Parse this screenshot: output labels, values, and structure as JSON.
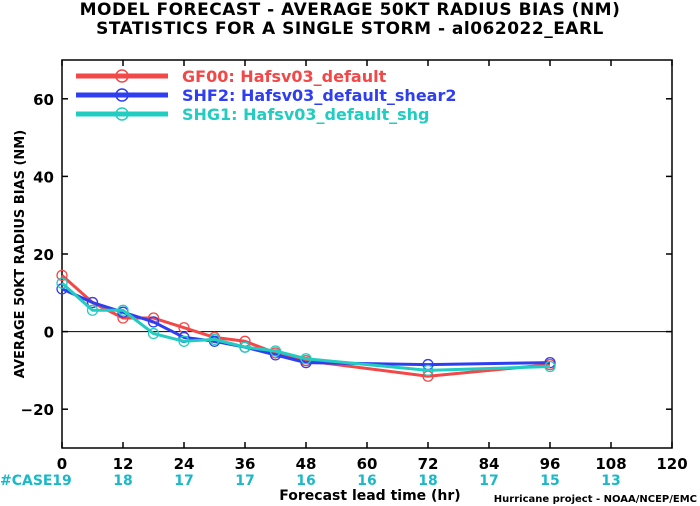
{
  "title": "MODEL FORECAST - AVERAGE 50KT RADIUS BIAS (NM)",
  "subtitle": "STATISTICS FOR A SINGLE STORM - al062022_EARL",
  "credit": "Hurricane project - NOAA/NCEP/EMC",
  "case_label": "#CASE",
  "chart_data": {
    "type": "line",
    "xlabel": "Forecast lead time (hr)",
    "ylabel": "AVERAGE 50KT RADIUS BIAS (NM)",
    "xlim": [
      0,
      120
    ],
    "ylim": [
      -30,
      70
    ],
    "xticks": [
      0,
      12,
      24,
      36,
      48,
      60,
      72,
      84,
      96,
      108,
      120
    ],
    "yticks": [
      -20,
      0,
      20,
      40,
      60
    ],
    "zero_line": true,
    "legend_position": "top-left",
    "series": [
      {
        "name": "GF00: Hafsv03_default",
        "color": "#f24848",
        "x": [
          0,
          6,
          12,
          18,
          24,
          30,
          36,
          42,
          48,
          72,
          96
        ],
        "y": [
          14.5,
          7.5,
          3.5,
          3.5,
          1,
          -1.5,
          -2.5,
          -5.5,
          -7.5,
          -11.5,
          -8.5
        ]
      },
      {
        "name": "SHF2: Hafsv03_default_shear2",
        "color": "#2e3ef0",
        "x": [
          0,
          6,
          12,
          18,
          24,
          30,
          36,
          42,
          48,
          72,
          96
        ],
        "y": [
          11,
          7.5,
          5,
          2.5,
          -1.5,
          -2.5,
          -4,
          -6,
          -8,
          -8.5,
          -8
        ]
      },
      {
        "name": "SHG1: Hafsv03_default_shg",
        "color": "#22ccc0",
        "x": [
          0,
          6,
          12,
          18,
          24,
          30,
          36,
          42,
          48,
          72,
          96
        ],
        "y": [
          12.5,
          5.5,
          5.5,
          -0.5,
          -2.5,
          -2,
          -4,
          -5,
          -7,
          -10,
          -9
        ]
      }
    ],
    "cases": [
      {
        "x": 0,
        "n": "19"
      },
      {
        "x": 12,
        "n": "18"
      },
      {
        "x": 24,
        "n": "17"
      },
      {
        "x": 36,
        "n": "17"
      },
      {
        "x": 48,
        "n": "16"
      },
      {
        "x": 60,
        "n": "16"
      },
      {
        "x": 72,
        "n": "18"
      },
      {
        "x": 84,
        "n": "17"
      },
      {
        "x": 96,
        "n": "15"
      },
      {
        "x": 108,
        "n": "13"
      }
    ]
  }
}
